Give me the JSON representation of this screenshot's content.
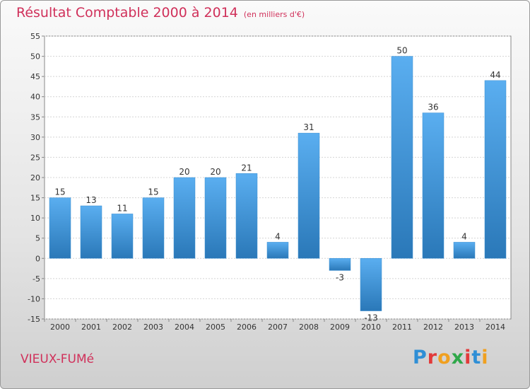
{
  "header": {
    "title": "Résultat Comptable 2000 à 2014",
    "subtitle": "(en milliers d'€)"
  },
  "footer": {
    "commune": "VIEUX-FUMé",
    "logo_text": "Proxiti",
    "logo_colors": [
      "#2f8fd6",
      "#e23a3a",
      "#f0a020",
      "#2fa84a",
      "#e23a3a",
      "#2f8fd6",
      "#f0a020"
    ]
  },
  "colors": {
    "bar_light": "#5aaef0",
    "bar_dark": "#2a78b8",
    "accent": "#d0305a"
  },
  "chart_data": {
    "type": "bar",
    "categories": [
      "2000",
      "2001",
      "2002",
      "2003",
      "2004",
      "2005",
      "2006",
      "2007",
      "2008",
      "2009",
      "2010",
      "2011",
      "2012",
      "2013",
      "2014"
    ],
    "values": [
      15,
      13,
      11,
      15,
      20,
      20,
      21,
      4,
      31,
      -3,
      -13,
      50,
      36,
      4,
      44
    ],
    "title": "Résultat Comptable 2000 à 2014",
    "ylim": [
      -15,
      55
    ],
    "yticks": [
      -15,
      -10,
      -5,
      0,
      5,
      10,
      15,
      20,
      25,
      30,
      35,
      40,
      45,
      50,
      55
    ],
    "grid": true,
    "data_labels": true
  }
}
